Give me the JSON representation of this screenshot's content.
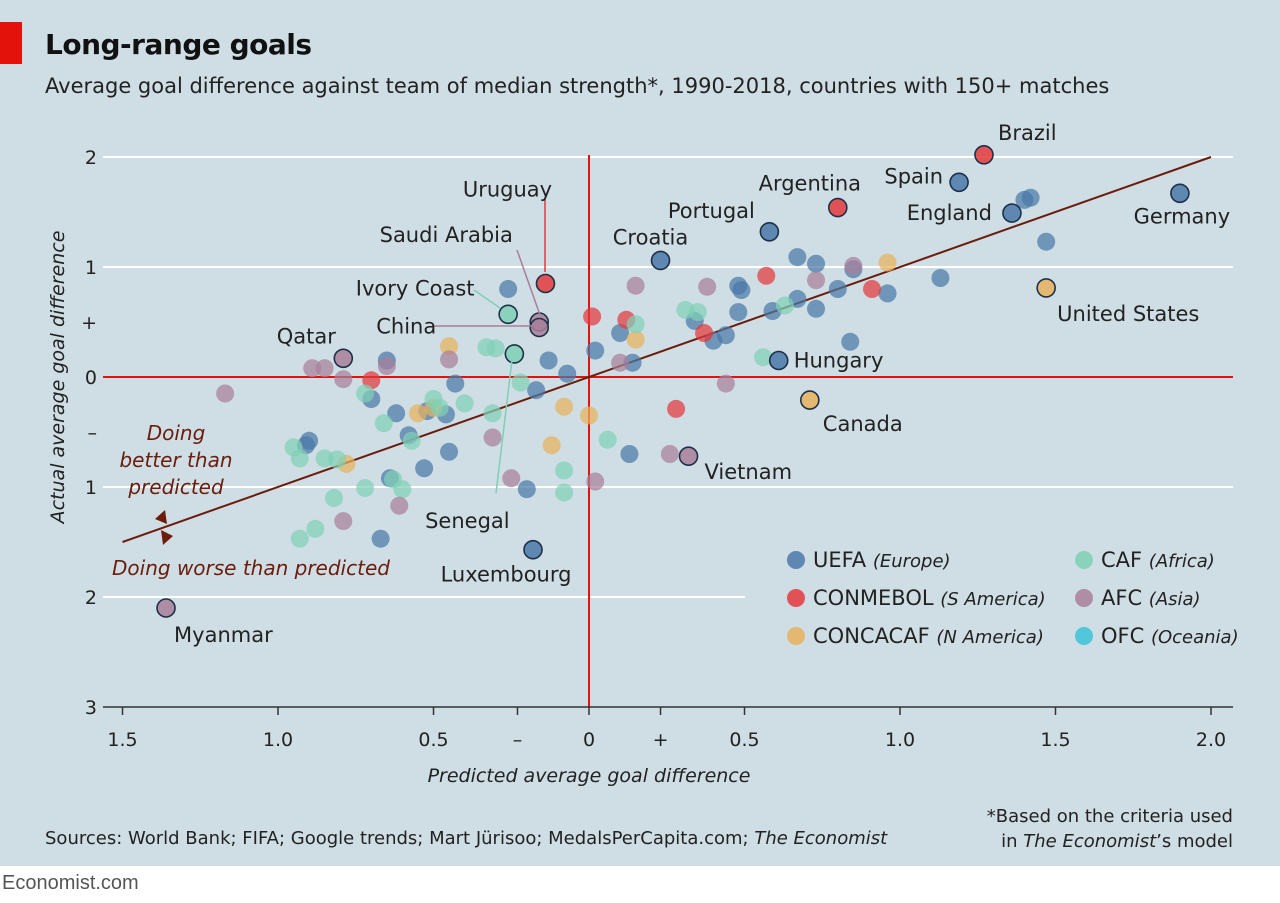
{
  "header": {
    "title": "Long-range goals",
    "subtitle": "Average goal difference against team of median strength*, 1990-2018, countries with 150+ matches"
  },
  "footer": {
    "source_prefix": "Sources: World Bank; FIFA; Google trends; Mart Jürisoo; MedalsPerCapita.com; ",
    "source_italic": "The Economist",
    "footnote_line1": "*Based on the criteria used",
    "footnote_line2_prefix": "in ",
    "footnote_line2_italic": "The Economist",
    "footnote_line2_suffix": "’s model",
    "brand": "Economist.com"
  },
  "colors": {
    "UEFA": "#4a78a8",
    "CONMEBOL": "#e3393c",
    "CONCACAF": "#e8b25c",
    "CAF": "#7fd0b6",
    "AFC": "#a87f9a",
    "OFC": "#3cc3d8",
    "zero_line": "#e3120b",
    "trend_line": "#6b1c0a",
    "annotation": "#6b1c0a"
  },
  "chart_data": {
    "type": "scatter",
    "xlabel": "Predicted average goal difference",
    "ylabel": "Actual average goal difference",
    "xlim": [
      -1.6,
      2.05
    ],
    "ylim": [
      -3,
      2.1
    ],
    "x_ticks": [
      {
        "v": -1.5,
        "label": "1.5"
      },
      {
        "v": -1.0,
        "label": "1.0"
      },
      {
        "v": -0.5,
        "label": "0.5"
      },
      {
        "v": -0.23,
        "label": "–"
      },
      {
        "v": 0,
        "label": "0"
      },
      {
        "v": 0.23,
        "label": "+"
      },
      {
        "v": 0.5,
        "label": "0.5"
      },
      {
        "v": 1.0,
        "label": "1.0"
      },
      {
        "v": 1.5,
        "label": "1.5"
      },
      {
        "v": 2.0,
        "label": "2.0"
      }
    ],
    "y_ticks": [
      {
        "v": 2,
        "label": "2"
      },
      {
        "v": 1,
        "label": "1"
      },
      {
        "v": 0.5,
        "label": "+"
      },
      {
        "v": 0,
        "label": "0"
      },
      {
        "v": -0.5,
        "label": "–"
      },
      {
        "v": -1,
        "label": "1"
      },
      {
        "v": -2,
        "label": "2"
      },
      {
        "v": -3,
        "label": "3"
      }
    ],
    "trend_line": [
      [
        -1.5,
        -1.5
      ],
      [
        2.0,
        2.0
      ]
    ],
    "annotations": {
      "better_line1": "Doing",
      "better_line2": "better than",
      "better_line3": "predicted",
      "worse": "Doing worse than predicted"
    },
    "legend": [
      {
        "group": "UEFA",
        "name": "UEFA",
        "region": "(Europe)"
      },
      {
        "group": "CAF",
        "name": "CAF",
        "region": "(Africa)"
      },
      {
        "group": "CONMEBOL",
        "name": "CONMEBOL",
        "region": "(S America)"
      },
      {
        "group": "AFC",
        "name": "AFC",
        "region": "(Asia)"
      },
      {
        "group": "CONCACAF",
        "name": "CONCACAF",
        "region": "(N America)"
      },
      {
        "group": "OFC",
        "name": "OFC",
        "region": "(Oceania)"
      }
    ],
    "labeled_points": [
      {
        "label": "Brazil",
        "x": 1.27,
        "y": 2.02,
        "group": "CONMEBOL"
      },
      {
        "label": "Spain",
        "x": 1.19,
        "y": 1.77,
        "group": "UEFA"
      },
      {
        "label": "England",
        "x": 1.36,
        "y": 1.49,
        "group": "UEFA"
      },
      {
        "label": "Germany",
        "x": 1.9,
        "y": 1.67,
        "group": "UEFA"
      },
      {
        "label": "Argentina",
        "x": 0.8,
        "y": 1.54,
        "group": "CONMEBOL"
      },
      {
        "label": "Portugal",
        "x": 0.58,
        "y": 1.32,
        "group": "UEFA"
      },
      {
        "label": "Croatia",
        "x": 0.23,
        "y": 1.06,
        "group": "UEFA"
      },
      {
        "label": "Uruguay",
        "x": -0.14,
        "y": 0.85,
        "group": "CONMEBOL"
      },
      {
        "label": "Saudi Arabia",
        "x": -0.16,
        "y": 0.5,
        "group": "AFC"
      },
      {
        "label": "Ivory Coast",
        "x": -0.26,
        "y": 0.57,
        "group": "CAF"
      },
      {
        "label": "China",
        "x": -0.16,
        "y": 0.45,
        "group": "AFC"
      },
      {
        "label": "Qatar",
        "x": -0.79,
        "y": 0.17,
        "group": "AFC"
      },
      {
        "label": "Senegal",
        "x": -0.24,
        "y": 0.21,
        "group": "CAF"
      },
      {
        "label": "Hungary",
        "x": 0.61,
        "y": 0.15,
        "group": "UEFA"
      },
      {
        "label": "United States",
        "x": 1.47,
        "y": 0.81,
        "group": "CONCACAF"
      },
      {
        "label": "Canada",
        "x": 0.71,
        "y": -0.21,
        "group": "CONCACAF"
      },
      {
        "label": "Vietnam",
        "x": 0.32,
        "y": -0.72,
        "group": "AFC"
      },
      {
        "label": "Luxembourg",
        "x": -0.18,
        "y": -1.57,
        "group": "UEFA"
      },
      {
        "label": "Myanmar",
        "x": -1.36,
        "y": -2.1,
        "group": "AFC"
      }
    ],
    "points": [
      {
        "x": 1.42,
        "y": 1.63,
        "group": "UEFA"
      },
      {
        "x": 1.4,
        "y": 1.61,
        "group": "UEFA"
      },
      {
        "x": 1.47,
        "y": 1.23,
        "group": "UEFA"
      },
      {
        "x": 1.13,
        "y": 0.9,
        "group": "UEFA"
      },
      {
        "x": 0.96,
        "y": 0.76,
        "group": "UEFA"
      },
      {
        "x": 0.85,
        "y": 0.98,
        "group": "UEFA"
      },
      {
        "x": 0.84,
        "y": 0.32,
        "group": "UEFA"
      },
      {
        "x": 0.8,
        "y": 0.8,
        "group": "UEFA"
      },
      {
        "x": 0.73,
        "y": 1.03,
        "group": "UEFA"
      },
      {
        "x": 0.67,
        "y": 1.09,
        "group": "UEFA"
      },
      {
        "x": 0.67,
        "y": 0.71,
        "group": "UEFA"
      },
      {
        "x": 0.73,
        "y": 0.62,
        "group": "UEFA"
      },
      {
        "x": 0.59,
        "y": 0.6,
        "group": "UEFA"
      },
      {
        "x": 0.48,
        "y": 0.83,
        "group": "UEFA"
      },
      {
        "x": 0.49,
        "y": 0.79,
        "group": "UEFA"
      },
      {
        "x": 0.48,
        "y": 0.59,
        "group": "UEFA"
      },
      {
        "x": 0.44,
        "y": 0.38,
        "group": "UEFA"
      },
      {
        "x": 0.4,
        "y": 0.33,
        "group": "UEFA"
      },
      {
        "x": 0.34,
        "y": 0.51,
        "group": "UEFA"
      },
      {
        "x": 0.14,
        "y": 0.13,
        "group": "UEFA"
      },
      {
        "x": 0.1,
        "y": 0.4,
        "group": "UEFA"
      },
      {
        "x": 0.02,
        "y": 0.24,
        "group": "UEFA"
      },
      {
        "x": -0.07,
        "y": 0.03,
        "group": "UEFA"
      },
      {
        "x": -0.13,
        "y": 0.15,
        "group": "UEFA"
      },
      {
        "x": -0.17,
        "y": -0.12,
        "group": "UEFA"
      },
      {
        "x": -0.26,
        "y": 0.8,
        "group": "UEFA"
      },
      {
        "x": -0.43,
        "y": -0.06,
        "group": "UEFA"
      },
      {
        "x": -0.46,
        "y": -0.34,
        "group": "UEFA"
      },
      {
        "x": -0.52,
        "y": -0.31,
        "group": "UEFA"
      },
      {
        "x": -0.58,
        "y": -0.53,
        "group": "UEFA"
      },
      {
        "x": -0.62,
        "y": -0.33,
        "group": "UEFA"
      },
      {
        "x": -0.65,
        "y": 0.15,
        "group": "UEFA"
      },
      {
        "x": -0.7,
        "y": -0.2,
        "group": "UEFA"
      },
      {
        "x": -0.45,
        "y": -0.68,
        "group": "UEFA"
      },
      {
        "x": -0.53,
        "y": -0.83,
        "group": "UEFA"
      },
      {
        "x": -0.64,
        "y": -0.92,
        "group": "UEFA"
      },
      {
        "x": -0.67,
        "y": -1.47,
        "group": "UEFA"
      },
      {
        "x": -0.2,
        "y": -1.02,
        "group": "UEFA"
      },
      {
        "x": 0.13,
        "y": -0.7,
        "group": "UEFA"
      },
      {
        "x": -0.9,
        "y": -0.58,
        "group": "UEFA"
      },
      {
        "x": -0.91,
        "y": -0.62,
        "group": "UEFA"
      },
      {
        "x": 0.57,
        "y": 0.92,
        "group": "CONMEBOL"
      },
      {
        "x": 0.91,
        "y": 0.8,
        "group": "CONMEBOL"
      },
      {
        "x": 0.37,
        "y": 0.4,
        "group": "CONMEBOL"
      },
      {
        "x": 0.12,
        "y": 0.52,
        "group": "CONMEBOL"
      },
      {
        "x": 0.01,
        "y": 0.55,
        "group": "CONMEBOL"
      },
      {
        "x": -0.7,
        "y": -0.03,
        "group": "CONMEBOL"
      },
      {
        "x": 0.28,
        "y": -0.29,
        "group": "CONMEBOL"
      },
      {
        "x": 0.96,
        "y": 1.04,
        "group": "CONCACAF"
      },
      {
        "x": 0.15,
        "y": 0.34,
        "group": "CONCACAF"
      },
      {
        "x": -0.45,
        "y": 0.28,
        "group": "CONCACAF"
      },
      {
        "x": -0.55,
        "y": -0.33,
        "group": "CONCACAF"
      },
      {
        "x": -0.5,
        "y": -0.28,
        "group": "CONCACAF"
      },
      {
        "x": -0.08,
        "y": -0.27,
        "group": "CONCACAF"
      },
      {
        "x": 0.0,
        "y": -0.35,
        "group": "CONCACAF"
      },
      {
        "x": -0.12,
        "y": -0.62,
        "group": "CONCACAF"
      },
      {
        "x": -0.78,
        "y": -0.79,
        "group": "CONCACAF"
      },
      {
        "x": 0.31,
        "y": 0.61,
        "group": "CAF"
      },
      {
        "x": 0.35,
        "y": 0.59,
        "group": "CAF"
      },
      {
        "x": 0.63,
        "y": 0.65,
        "group": "CAF"
      },
      {
        "x": 0.56,
        "y": 0.18,
        "group": "CAF"
      },
      {
        "x": 0.15,
        "y": 0.48,
        "group": "CAF"
      },
      {
        "x": -0.3,
        "y": 0.26,
        "group": "CAF"
      },
      {
        "x": -0.33,
        "y": 0.27,
        "group": "CAF"
      },
      {
        "x": -0.22,
        "y": -0.05,
        "group": "CAF"
      },
      {
        "x": -0.31,
        "y": -0.33,
        "group": "CAF"
      },
      {
        "x": -0.4,
        "y": -0.24,
        "group": "CAF"
      },
      {
        "x": -0.5,
        "y": -0.2,
        "group": "CAF"
      },
      {
        "x": -0.48,
        "y": -0.28,
        "group": "CAF"
      },
      {
        "x": -0.57,
        "y": -0.58,
        "group": "CAF"
      },
      {
        "x": -0.66,
        "y": -0.42,
        "group": "CAF"
      },
      {
        "x": -0.72,
        "y": -0.15,
        "group": "CAF"
      },
      {
        "x": -0.63,
        "y": -0.93,
        "group": "CAF"
      },
      {
        "x": -0.6,
        "y": -1.02,
        "group": "CAF"
      },
      {
        "x": -0.72,
        "y": -1.01,
        "group": "CAF"
      },
      {
        "x": -0.81,
        "y": -0.75,
        "group": "CAF"
      },
      {
        "x": -0.85,
        "y": -0.74,
        "group": "CAF"
      },
      {
        "x": -0.93,
        "y": -0.74,
        "group": "CAF"
      },
      {
        "x": -0.95,
        "y": -0.64,
        "group": "CAF"
      },
      {
        "x": -0.82,
        "y": -1.1,
        "group": "CAF"
      },
      {
        "x": -0.88,
        "y": -1.38,
        "group": "CAF"
      },
      {
        "x": -0.93,
        "y": -1.47,
        "group": "CAF"
      },
      {
        "x": -0.08,
        "y": -0.85,
        "group": "CAF"
      },
      {
        "x": -0.08,
        "y": -1.05,
        "group": "CAF"
      },
      {
        "x": 0.06,
        "y": -0.57,
        "group": "CAF"
      },
      {
        "x": 0.15,
        "y": 0.83,
        "group": "AFC"
      },
      {
        "x": 0.38,
        "y": 0.82,
        "group": "AFC"
      },
      {
        "x": 0.73,
        "y": 0.88,
        "group": "AFC"
      },
      {
        "x": 0.85,
        "y": 1.01,
        "group": "AFC"
      },
      {
        "x": 0.1,
        "y": 0.13,
        "group": "AFC"
      },
      {
        "x": 0.44,
        "y": -0.06,
        "group": "AFC"
      },
      {
        "x": 0.26,
        "y": -0.7,
        "group": "AFC"
      },
      {
        "x": 0.02,
        "y": -0.95,
        "group": "AFC"
      },
      {
        "x": -0.25,
        "y": -0.92,
        "group": "AFC"
      },
      {
        "x": -0.31,
        "y": -0.55,
        "group": "AFC"
      },
      {
        "x": -0.45,
        "y": 0.16,
        "group": "AFC"
      },
      {
        "x": -0.65,
        "y": 0.1,
        "group": "AFC"
      },
      {
        "x": -0.79,
        "y": -0.02,
        "group": "AFC"
      },
      {
        "x": -0.85,
        "y": 0.08,
        "group": "AFC"
      },
      {
        "x": -0.89,
        "y": 0.08,
        "group": "AFC"
      },
      {
        "x": -1.17,
        "y": -0.15,
        "group": "AFC"
      },
      {
        "x": -0.61,
        "y": -1.17,
        "group": "AFC"
      },
      {
        "x": -0.79,
        "y": -1.31,
        "group": "AFC"
      }
    ]
  }
}
